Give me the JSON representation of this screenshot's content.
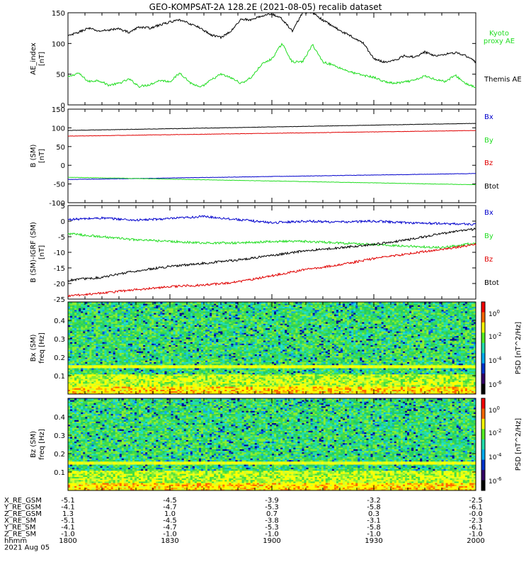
{
  "title": "GEO-KOMPSAT-2A 128.2E (2021-08-05) recalib dataset",
  "colors": {
    "black": "#000000",
    "red": "#e00000",
    "green": "#22dd22",
    "blue": "#0000cc"
  },
  "chart_data": [
    {
      "id": "ae",
      "type": "line",
      "ylabel": "AE_index\n[nT]",
      "ylim": [
        0,
        150
      ],
      "yticks": [
        0,
        50,
        100,
        150
      ],
      "x": [
        1800,
        1803,
        1806,
        1809,
        1812,
        1815,
        1818,
        1821,
        1824,
        1827,
        1830,
        1833,
        1836,
        1839,
        1842,
        1845,
        1848,
        1851,
        1854,
        1857,
        1900,
        1903,
        1906,
        1909,
        1912,
        1915,
        1918,
        1921,
        1924,
        1927,
        1930,
        1933,
        1936,
        1939,
        1942,
        1945,
        1948,
        1951,
        1954,
        1957,
        2000
      ],
      "series": [
        {
          "name": "Kyoto\nproxy AE",
          "color": "#22dd22",
          "values": [
            45,
            52,
            38,
            40,
            32,
            35,
            42,
            30,
            33,
            40,
            38,
            52,
            36,
            28,
            40,
            50,
            44,
            35,
            45,
            66,
            75,
            100,
            70,
            70,
            98,
            70,
            65,
            58,
            52,
            48,
            45,
            38,
            35,
            37,
            40,
            47,
            42,
            38,
            48,
            35,
            28
          ]
        },
        {
          "name": "Themis AE",
          "color": "#000000",
          "values": [
            112,
            118,
            125,
            120,
            122,
            124,
            118,
            127,
            125,
            130,
            135,
            138,
            132,
            125,
            114,
            110,
            120,
            140,
            138,
            145,
            148,
            140,
            120,
            150,
            150,
            138,
            128,
            118,
            110,
            100,
            75,
            70,
            72,
            80,
            78,
            86,
            80,
            83,
            85,
            80,
            70
          ]
        }
      ]
    },
    {
      "id": "bsm",
      "type": "line",
      "ylabel": "B (SM)\n[nT]",
      "ylim": [
        -100,
        150
      ],
      "yticks": [
        -100,
        -50,
        0,
        50,
        100,
        150
      ],
      "x": [
        1800,
        2000
      ],
      "series": [
        {
          "name": "Bx",
          "color": "#0000cc",
          "values": [
            -38,
            -22
          ]
        },
        {
          "name": "By",
          "color": "#22dd22",
          "values": [
            -32,
            -52
          ]
        },
        {
          "name": "Bz",
          "color": "#e00000",
          "values": [
            78,
            93
          ]
        },
        {
          "name": "Btot",
          "color": "#000000",
          "values": [
            93,
            112
          ]
        }
      ]
    },
    {
      "id": "bresid",
      "type": "line",
      "ylabel": "B (SM)-IGRF (SM)\n[nT]",
      "ylim": [
        -25,
        5
      ],
      "yticks": [
        -25,
        -20,
        -15,
        -10,
        -5,
        0,
        5
      ],
      "x": [
        1800,
        1810,
        1820,
        1830,
        1840,
        1850,
        1900,
        1910,
        1920,
        1930,
        1940,
        1950,
        2000
      ],
      "series": [
        {
          "name": "Bx",
          "color": "#0000cc",
          "values": [
            0.5,
            1,
            0.3,
            0.8,
            1.5,
            0.5,
            -0.5,
            0,
            -0.3,
            0,
            -0.5,
            -0.8,
            -1
          ]
        },
        {
          "name": "By",
          "color": "#22dd22",
          "values": [
            -4,
            -5,
            -6,
            -6.5,
            -7,
            -7,
            -6.5,
            -6.5,
            -7,
            -7.5,
            -8,
            -8.5,
            -7
          ]
        },
        {
          "name": "Bz",
          "color": "#e00000",
          "values": [
            -24,
            -23,
            -22,
            -21,
            -20.5,
            -19.5,
            -17.5,
            -15.5,
            -14,
            -12,
            -10.5,
            -9,
            -7.5
          ]
        },
        {
          "name": "Btot",
          "color": "#000000",
          "values": [
            -19,
            -18,
            -16,
            -14.5,
            -13.5,
            -12.5,
            -11,
            -9.5,
            -8.5,
            -7.5,
            -6,
            -4,
            -2.5
          ]
        }
      ]
    },
    {
      "id": "spec_bx",
      "type": "heatmap",
      "ylabel": "Bx (SM)\nfreq [Hz]",
      "ylim": [
        0,
        0.5
      ],
      "yticks": [
        0.1,
        0.2,
        0.3,
        0.4
      ],
      "colorbar": {
        "label": "PSD [nT^2/Hz]",
        "ticks": [
          "10^0",
          "10^-2",
          "10^-4",
          "10^-6"
        ]
      }
    },
    {
      "id": "spec_bz",
      "type": "heatmap",
      "ylabel": "Bz (SM)\nfreq [Hz]",
      "ylim": [
        0,
        0.5
      ],
      "yticks": [
        0.1,
        0.2,
        0.3,
        0.4
      ],
      "colorbar": {
        "label": "PSD [nT^2/Hz]",
        "ticks": [
          "10^0",
          "10^-2",
          "10^-4",
          "10^-6"
        ]
      }
    }
  ],
  "ephemeris": {
    "labels": [
      "X_RE_GSM",
      "Y_RE_GSM",
      "Z_RE_GSM",
      "X_RE_SM",
      "Y_RE_SM",
      "Z_RE_SM",
      "hhmm"
    ],
    "date": "2021 Aug 05",
    "columns": [
      {
        "values": [
          "-5.1",
          "-4.1",
          "1.3",
          "-5.1",
          "-4.1",
          "-1.0",
          "1800"
        ]
      },
      {
        "values": [
          "-4.5",
          "-4.7",
          "1.0",
          "-4.5",
          "-4.7",
          "-1.0",
          "1830"
        ]
      },
      {
        "values": [
          "-3.9",
          "-5.3",
          "0.7",
          "-3.8",
          "-5.3",
          "-1.0",
          "1900"
        ]
      },
      {
        "values": [
          "-3.2",
          "-5.8",
          "0.3",
          "-3.1",
          "-5.8",
          "-1.0",
          "1930"
        ]
      },
      {
        "values": [
          "-2.5",
          "-6.1",
          "-0.0",
          "-2.3",
          "-6.1",
          "-1.0",
          "2000"
        ]
      }
    ]
  }
}
